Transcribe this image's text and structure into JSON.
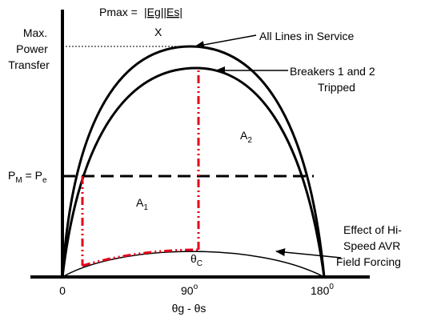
{
  "formula": {
    "lhs": "Pmax = ",
    "numerator": "|Eg||Es|",
    "denominator": "X"
  },
  "max_power_label": [
    "Max.",
    "Power",
    "Transfer"
  ],
  "pm_label": {
    "p": "P",
    "m_sub": "M",
    "eq": " = P",
    "e_sub": "e"
  },
  "curves": {
    "all_lines": "All Lines in  Service",
    "breakers": [
      "Breakers 1 and 2",
      "Tripped"
    ],
    "avr": [
      "Effect of Hi-",
      "Speed AVR",
      "Field Forcing"
    ]
  },
  "areas": {
    "a1": {
      "base": "A",
      "sub": "1"
    },
    "a2": {
      "base": "A",
      "sub": "2"
    }
  },
  "theta_c": {
    "base": "θ",
    "sub": "C"
  },
  "x_ticks": {
    "zero": "0",
    "ninety": {
      "base": "90",
      "sup": "o"
    },
    "one_eighty": {
      "base": "180",
      "sup": "0"
    }
  },
  "x_axis_label": "θg - θs",
  "colors": {
    "clearing_path": "#e4001c",
    "curves": "#000000"
  }
}
